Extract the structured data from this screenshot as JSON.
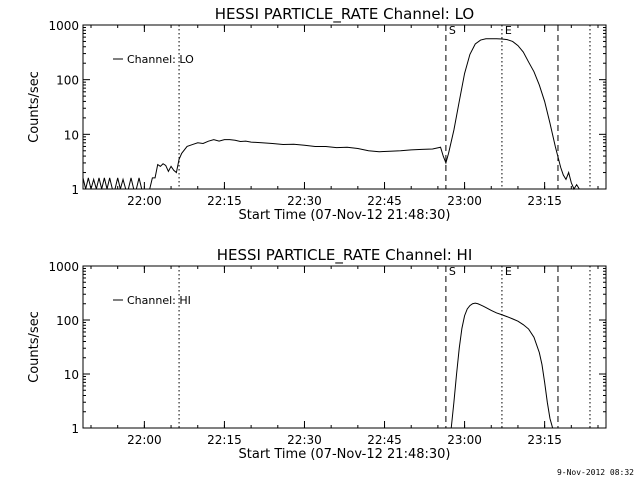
{
  "footer_timestamp": "9-Nov-2012 08:32",
  "chart_data": [
    {
      "type": "line",
      "title": "HESSI PARTICLE_RATE Channel: LO",
      "xlabel": "Start Time (07-Nov-12 21:48:30)",
      "ylabel": "Counts/sec",
      "yscale": "log",
      "ylim": [
        1,
        1000
      ],
      "xlim": [
        "21:48:30",
        "23:26:30"
      ],
      "x_ticks": [
        "22:00",
        "22:15",
        "22:30",
        "22:45",
        "23:00",
        "23:15"
      ],
      "y_ticks": [
        "1",
        "10",
        "100",
        "1000"
      ],
      "legend": {
        "label": "Channel: LO",
        "position": "top-left"
      },
      "markers": [
        {
          "label": "S",
          "time": "22:56:30",
          "style": "dashed"
        },
        {
          "label": "E",
          "time": "23:07:00",
          "style": "dotted"
        },
        {
          "label": "",
          "time": "22:06:30",
          "style": "dotted"
        },
        {
          "label": "",
          "time": "23:17:30",
          "style": "dashed"
        },
        {
          "label": "",
          "time": "23:23:30",
          "style": "dotted"
        }
      ],
      "series": [
        {
          "name": "Channel: LO",
          "x": [
            "21:48:30",
            "21:49:00",
            "21:49:30",
            "21:50:00",
            "21:50:30",
            "21:51:00",
            "21:51:30",
            "21:52:00",
            "21:52:30",
            "21:53:00",
            "21:53:30",
            "21:54:00",
            "21:54:30",
            "21:55:00",
            "21:55:30",
            "21:56:00",
            "21:56:30",
            "21:57:00",
            "21:57:30",
            "21:58:00",
            "21:58:30",
            "21:59:00",
            "21:59:30",
            "22:00:00",
            "22:00:30",
            "22:01:00",
            "22:01:30",
            "22:02:00",
            "22:02:30",
            "22:03:00",
            "22:03:30",
            "22:04:00",
            "22:04:30",
            "22:05:00",
            "22:05:30",
            "22:06:00",
            "22:06:30",
            "22:07:00",
            "22:08:00",
            "22:09:00",
            "22:10:00",
            "22:11:00",
            "22:12:00",
            "22:13:00",
            "22:14:00",
            "22:15:00",
            "22:16:00",
            "22:17:00",
            "22:18:00",
            "22:19:00",
            "22:20:00",
            "22:22:00",
            "22:24:00",
            "22:26:00",
            "22:28:00",
            "22:30:00",
            "22:32:00",
            "22:34:00",
            "22:36:00",
            "22:38:00",
            "22:40:00",
            "22:42:00",
            "22:44:00",
            "22:46:00",
            "22:48:00",
            "22:50:00",
            "22:52:00",
            "22:54:00",
            "22:55:30",
            "22:56:00",
            "22:56:30",
            "22:57:00",
            "22:58:00",
            "22:59:00",
            "23:00:00",
            "23:01:00",
            "23:02:00",
            "23:03:00",
            "23:04:00",
            "23:05:00",
            "23:06:00",
            "23:07:00",
            "23:08:00",
            "23:09:00",
            "23:10:00",
            "23:11:00",
            "23:12:00",
            "23:13:00",
            "23:14:00",
            "23:15:00",
            "23:16:00",
            "23:17:00",
            "23:18:00",
            "23:18:30",
            "23:19:00",
            "23:19:30",
            "23:20:00",
            "23:20:30",
            "23:21:00",
            "23:21:30"
          ],
          "y": [
            1.6,
            1,
            1.6,
            1,
            1.5,
            1,
            1.6,
            1,
            1.6,
            1,
            1.6,
            1,
            1,
            1.6,
            1,
            1.5,
            1,
            1,
            1.6,
            1,
            1,
            1.6,
            1,
            1,
            1,
            1,
            1.6,
            1.6,
            2.8,
            2.6,
            2.9,
            2.7,
            2.1,
            2.6,
            2.2,
            2.0,
            3.5,
            4.5,
            6.0,
            6.5,
            7.0,
            6.8,
            7.5,
            8.0,
            7.5,
            8.0,
            8.0,
            7.8,
            7.4,
            7.5,
            7.2,
            7.0,
            6.8,
            6.5,
            6.6,
            6.3,
            6.0,
            6.0,
            5.7,
            5.8,
            5.5,
            5.0,
            4.8,
            4.9,
            5.0,
            5.2,
            5.3,
            5.4,
            5.8,
            4.0,
            3.0,
            4.5,
            12,
            40,
            130,
            290,
            450,
            530,
            560,
            560,
            560,
            555,
            540,
            500,
            420,
            320,
            210,
            140,
            80,
            40,
            16,
            6.0,
            2.5,
            1.8,
            1.5,
            2.0,
            1.3,
            1.0,
            1.2,
            1.0
          ]
        }
      ]
    },
    {
      "type": "line",
      "title": "HESSI PARTICLE_RATE Channel: HI",
      "xlabel": "Start Time (07-Nov-12 21:48:30)",
      "ylabel": "Counts/sec",
      "yscale": "log",
      "ylim": [
        1,
        1000
      ],
      "xlim": [
        "21:48:30",
        "23:26:30"
      ],
      "x_ticks": [
        "22:00",
        "22:15",
        "22:30",
        "22:45",
        "23:00",
        "23:15"
      ],
      "y_ticks": [
        "1",
        "10",
        "100",
        "1000"
      ],
      "legend": {
        "label": "Channel: HI",
        "position": "top-left"
      },
      "markers": [
        {
          "label": "S",
          "time": "22:56:30",
          "style": "dashed"
        },
        {
          "label": "E",
          "time": "23:07:00",
          "style": "dotted"
        },
        {
          "label": "",
          "time": "22:06:30",
          "style": "dotted"
        },
        {
          "label": "",
          "time": "23:17:30",
          "style": "dashed"
        },
        {
          "label": "",
          "time": "23:23:30",
          "style": "dotted"
        }
      ],
      "series": [
        {
          "name": "Channel: HI",
          "x": [
            "22:57:30",
            "22:58:00",
            "22:58:30",
            "22:59:00",
            "22:59:30",
            "23:00:00",
            "23:00:30",
            "23:01:00",
            "23:01:30",
            "23:02:00",
            "23:02:30",
            "23:03:00",
            "23:03:30",
            "23:04:00",
            "23:05:00",
            "23:06:00",
            "23:07:00",
            "23:08:00",
            "23:09:00",
            "23:10:00",
            "23:11:00",
            "23:12:00",
            "23:13:00",
            "23:14:00",
            "23:14:30",
            "23:15:00",
            "23:15:30",
            "23:16:00",
            "23:16:30"
          ],
          "y": [
            1,
            3,
            10,
            30,
            70,
            120,
            160,
            185,
            200,
            205,
            200,
            190,
            180,
            170,
            150,
            135,
            125,
            115,
            105,
            95,
            82,
            68,
            48,
            25,
            15,
            7,
            3,
            1.5,
            1
          ]
        }
      ]
    }
  ]
}
